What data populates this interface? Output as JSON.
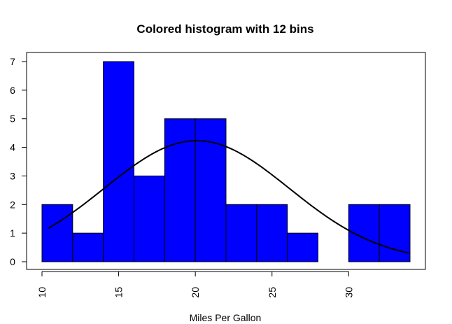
{
  "chart_data": {
    "type": "bar",
    "title": "Colored histogram with 12 bins",
    "xlabel": "Miles Per Gallon",
    "ylabel": "",
    "bar_color": "#0000ff",
    "bar_border_color": "#000000",
    "curve_color": "#000000",
    "bins": [
      {
        "start": 10,
        "end": 12,
        "count": 2
      },
      {
        "start": 12,
        "end": 14,
        "count": 1
      },
      {
        "start": 14,
        "end": 16,
        "count": 7
      },
      {
        "start": 16,
        "end": 18,
        "count": 3
      },
      {
        "start": 18,
        "end": 20,
        "count": 5
      },
      {
        "start": 20,
        "end": 22,
        "count": 5
      },
      {
        "start": 22,
        "end": 24,
        "count": 2
      },
      {
        "start": 24,
        "end": 26,
        "count": 2
      },
      {
        "start": 26,
        "end": 28,
        "count": 1
      },
      {
        "start": 28,
        "end": 30,
        "count": 0
      },
      {
        "start": 30,
        "end": 32,
        "count": 2
      },
      {
        "start": 32,
        "end": 34,
        "count": 2
      }
    ],
    "normal_curve": {
      "mean": 20.09,
      "sd": 6.03,
      "n": 32,
      "bin_width": 2,
      "x_start": 10.4,
      "x_end": 33.9
    },
    "xlim": [
      10,
      34
    ],
    "ylim": [
      0,
      7
    ],
    "x_ticks": [
      "10",
      "15",
      "20",
      "25",
      "30"
    ],
    "y_ticks": [
      "0",
      "1",
      "2",
      "3",
      "4",
      "5",
      "6",
      "7"
    ],
    "grid": false
  }
}
